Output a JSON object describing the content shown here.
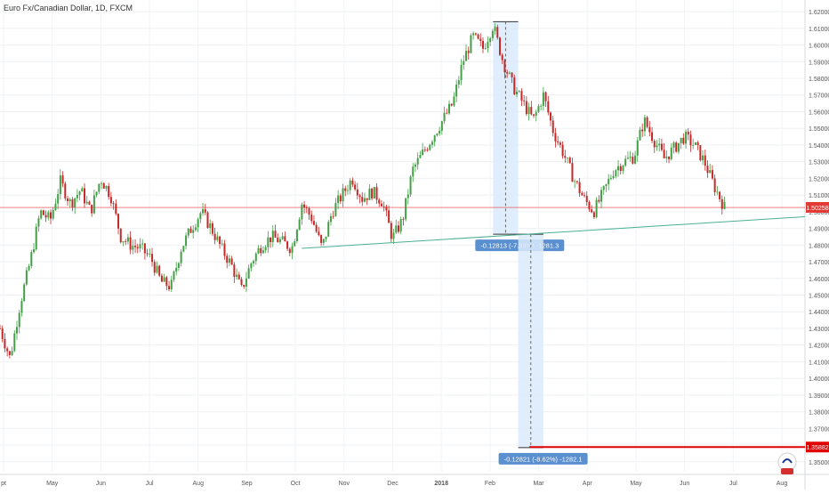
{
  "chart_title": "Euro Fx/Canadian Dollar, 1D, FXCM",
  "chart_data": {
    "type": "candlestick",
    "title": "Euro Fx/Canadian Dollar, 1D, FXCM",
    "xlabel": "",
    "ylabel": "",
    "x_ticks": [
      "pt",
      "May",
      "Jun",
      "Jul",
      "Aug",
      "Sep",
      "Oct",
      "Nov",
      "Dec",
      "2018",
      "Feb",
      "Mar",
      "Apr",
      "May",
      "Jun",
      "Jul",
      "Aug"
    ],
    "y_ticks": [
      "1.62000",
      "1.61000",
      "1.60000",
      "1.59000",
      "1.58000",
      "1.57000",
      "1.56000",
      "1.55000",
      "1.54000",
      "1.53000",
      "1.52000",
      "1.51000",
      "1.50000",
      "1.49000",
      "1.48000",
      "1.47000",
      "1.46000",
      "1.45000",
      "1.44000",
      "1.43000",
      "1.42000",
      "1.41000",
      "1.40000",
      "1.39000",
      "1.38000",
      "1.37000",
      "1.36000",
      "1.35000"
    ],
    "ylim": [
      1.344,
      1.627
    ],
    "close_path": [
      [
        0,
        1.43
      ],
      [
        1,
        1.412
      ],
      [
        2,
        1.445
      ],
      [
        3,
        1.47
      ],
      [
        4,
        1.5
      ],
      [
        5,
        1.495
      ],
      [
        6,
        1.518
      ],
      [
        7,
        1.505
      ],
      [
        8,
        1.513
      ],
      [
        9,
        1.5
      ],
      [
        10,
        1.52
      ],
      [
        11,
        1.51
      ],
      [
        12,
        1.485
      ],
      [
        13,
        1.48
      ],
      [
        14,
        1.478
      ],
      [
        15,
        1.472
      ],
      [
        16,
        1.458
      ],
      [
        17,
        1.455
      ],
      [
        18,
        1.478
      ],
      [
        19,
        1.49
      ],
      [
        20,
        1.5
      ],
      [
        21,
        1.49
      ],
      [
        22,
        1.478
      ],
      [
        23,
        1.468
      ],
      [
        24,
        1.453
      ],
      [
        25,
        1.47
      ],
      [
        26,
        1.48
      ],
      [
        27,
        1.485
      ],
      [
        28,
        1.482
      ],
      [
        29,
        1.478
      ],
      [
        30,
        1.505
      ],
      [
        31,
        1.496
      ],
      [
        32,
        1.478
      ],
      [
        33,
        1.5
      ],
      [
        34,
        1.51
      ],
      [
        35,
        1.52
      ],
      [
        36,
        1.508
      ],
      [
        37,
        1.512
      ],
      [
        38,
        1.506
      ],
      [
        39,
        1.484
      ],
      [
        40,
        1.495
      ],
      [
        41,
        1.525
      ],
      [
        42,
        1.535
      ],
      [
        43,
        1.545
      ],
      [
        44,
        1.555
      ],
      [
        45,
        1.565
      ],
      [
        46,
        1.59
      ],
      [
        47,
        1.605
      ],
      [
        48,
        1.598
      ],
      [
        49,
        1.612
      ],
      [
        50,
        1.59
      ],
      [
        51,
        1.575
      ],
      [
        52,
        1.565
      ],
      [
        53,
        1.555
      ],
      [
        54,
        1.57
      ],
      [
        55,
        1.548
      ],
      [
        56,
        1.535
      ],
      [
        57,
        1.52
      ],
      [
        58,
        1.508
      ],
      [
        59,
        1.5
      ],
      [
        60,
        1.512
      ],
      [
        61,
        1.525
      ],
      [
        62,
        1.53
      ],
      [
        63,
        1.533
      ],
      [
        64,
        1.555
      ],
      [
        65,
        1.543
      ],
      [
        66,
        1.532
      ],
      [
        67,
        1.538
      ],
      [
        68,
        1.545
      ],
      [
        69,
        1.54
      ],
      [
        70,
        1.53
      ],
      [
        71,
        1.515
      ],
      [
        72,
        1.5026
      ]
    ],
    "last_price": "1.50258",
    "target_price": "1.35882",
    "last_price_color": "#e53935",
    "target_line_color": "#e00000",
    "up_color": "#43a047",
    "down_color": "#c62828",
    "trendline_color": "#4caf93",
    "trendline": {
      "start": [
        30,
        1.478
      ],
      "end": [
        80,
        1.497
      ]
    },
    "measure_1": {
      "label": "-0.12813 (-7.93%) -1281.3",
      "from_price": 1.614,
      "to_price": 1.4865,
      "x_range": [
        49,
        51.5
      ]
    },
    "measure_2": {
      "label": "-0.12821 (-8.62%) -1282.1",
      "from_price": 1.4865,
      "to_price": 1.3585,
      "x_range": [
        51.5,
        54
      ]
    },
    "grid": true,
    "x_domain": [
      0,
      80
    ]
  }
}
